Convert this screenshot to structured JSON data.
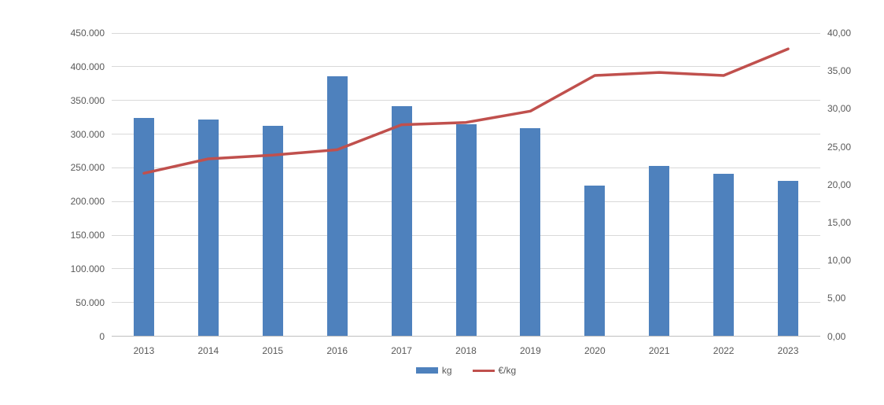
{
  "chart_data": {
    "type": "combo_bar_line",
    "title": "",
    "xlabel": "",
    "grid": "horizontal",
    "legend_position": "bottom-center",
    "categories": [
      "2013",
      "2014",
      "2015",
      "2016",
      "2017",
      "2018",
      "2019",
      "2020",
      "2021",
      "2022",
      "2023"
    ],
    "series": [
      {
        "name": "kg",
        "type": "bar",
        "axis": "left",
        "color": "#4E81BD",
        "values": [
          324000,
          322000,
          312000,
          386000,
          342000,
          315000,
          309000,
          224000,
          253000,
          241000,
          230000
        ]
      },
      {
        "name": "€/kg",
        "type": "line",
        "axis": "right",
        "color": "#C0504D",
        "values": [
          21.5,
          23.4,
          23.9,
          24.6,
          27.9,
          28.2,
          29.7,
          34.4,
          34.8,
          34.4,
          37.9
        ]
      }
    ],
    "left_axis": {
      "min": 0,
      "max": 450000,
      "tick_step": 50000,
      "tick_labels": [
        "450.000",
        "400.000",
        "350.000",
        "300.000",
        "250.000",
        "200.000",
        "150.000",
        "100.000",
        "50.000",
        "0"
      ]
    },
    "right_axis": {
      "min": 0,
      "max": 40,
      "tick_step": 5,
      "tick_labels": [
        "40,00",
        "35,00",
        "30,00",
        "25,00",
        "20,00",
        "15,00",
        "10,00",
        "5,00",
        "0,00"
      ]
    },
    "colors": {
      "bar": "#4E81BD",
      "line": "#C0504D",
      "gridline": "#D9D9D9",
      "axis_line": "#BFBFBF",
      "text": "#595959"
    }
  }
}
